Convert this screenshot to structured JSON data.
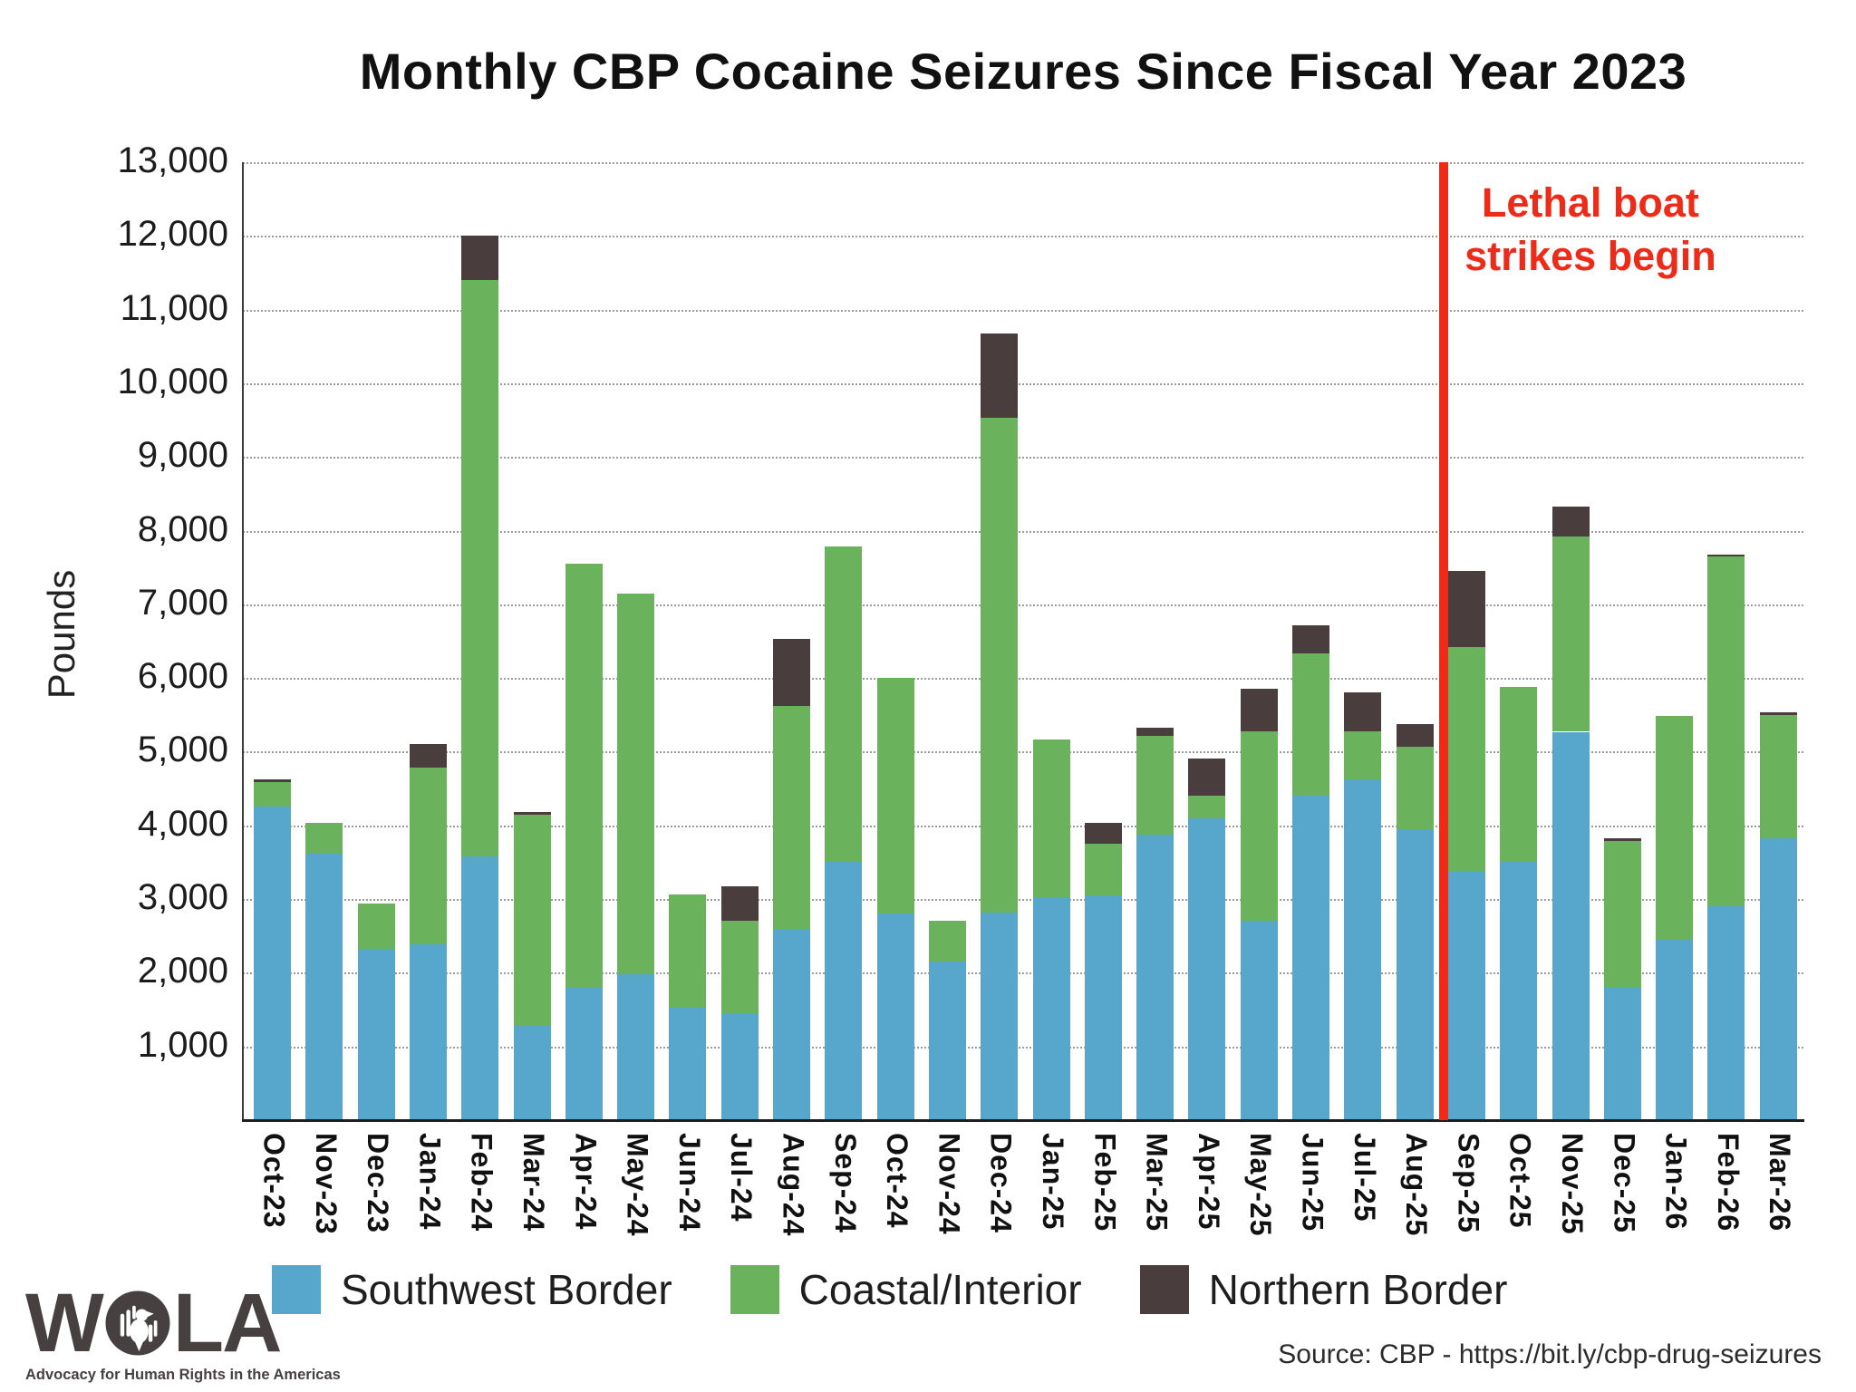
{
  "title": "Monthly CBP Cocaine Seizures Since Fiscal Year 2023",
  "y_axis": {
    "label": "Pounds",
    "ticks": [
      "13,000",
      "12,000",
      "11,000",
      "10,000",
      "9,000",
      "8,000",
      "7,000",
      "6,000",
      "5,000",
      "4,000",
      "3,000",
      "2,000",
      "1,000"
    ]
  },
  "chart_data": {
    "type": "bar",
    "stacked": true,
    "title": "Monthly CBP Cocaine Seizures Since Fiscal Year 2023",
    "xlabel": "",
    "ylabel": "Pounds",
    "ylim": [
      0,
      13000
    ],
    "grid": true,
    "legend_position": "bottom",
    "categories": [
      "Oct-23",
      "Nov-23",
      "Dec-23",
      "Jan-24",
      "Feb-24",
      "Mar-24",
      "Apr-24",
      "May-24",
      "Jun-24",
      "Jul-24",
      "Aug-24",
      "Sep-24",
      "Oct-24",
      "Nov-24",
      "Dec-24",
      "Jan-25",
      "Feb-25",
      "Mar-25",
      "Apr-25",
      "May-25",
      "Jun-25",
      "Jul-25",
      "Aug-25",
      "Sep-25",
      "Oct-25",
      "Nov-25",
      "Dec-25",
      "Jan-26",
      "Feb-26",
      "Mar-26"
    ],
    "series": [
      {
        "name": "Southwest Border",
        "color": "#57a7cd",
        "values": [
          4250,
          3620,
          2330,
          2390,
          3580,
          1280,
          1800,
          1980,
          1520,
          1450,
          2600,
          3500,
          2800,
          2150,
          2820,
          3030,
          3050,
          3880,
          4090,
          2700,
          4400,
          4620,
          3950,
          3380,
          3500,
          5270,
          1810,
          2450,
          2900,
          3820
        ]
      },
      {
        "name": "Coastal/Interior",
        "color": "#6bb25d",
        "values": [
          340,
          410,
          610,
          2400,
          7820,
          2870,
          5750,
          5170,
          1540,
          1250,
          3020,
          4280,
          3200,
          550,
          6710,
          2140,
          700,
          1330,
          310,
          2580,
          1940,
          660,
          1120,
          3040,
          2380,
          2650,
          1980,
          3040,
          4750,
          1680
        ]
      },
      {
        "name": "Northern Border",
        "color": "#493e3d",
        "values": [
          30,
          0,
          0,
          310,
          600,
          30,
          0,
          0,
          0,
          470,
          910,
          0,
          0,
          0,
          1150,
          0,
          280,
          120,
          510,
          570,
          370,
          530,
          300,
          1030,
          0,
          410,
          40,
          0,
          30,
          30
        ]
      }
    ]
  },
  "annotation": {
    "line1": "Lethal boat",
    "line2": "strikes begin",
    "color": "#ee2b18",
    "position_after_category": "Aug-25"
  },
  "legend": [
    {
      "label": "Southwest Border",
      "color": "#57a7cd"
    },
    {
      "label": "Coastal/Interior",
      "color": "#6bb25d"
    },
    {
      "label": "Northern Border",
      "color": "#493e3d"
    }
  ],
  "source": "Source: CBP - https://bit.ly/cbp-drug-seizures",
  "logo": {
    "brand_left": "W",
    "brand_right": "LA",
    "tagline": "Advocacy for Human Rights in the Americas"
  }
}
